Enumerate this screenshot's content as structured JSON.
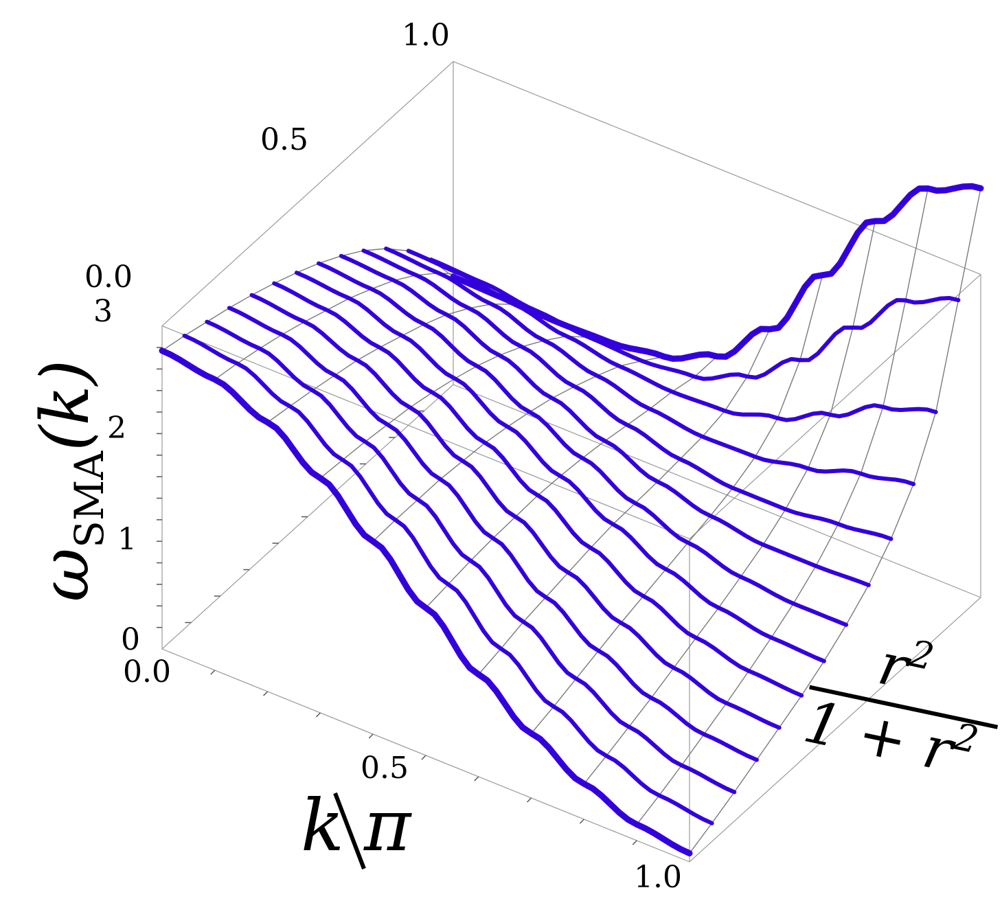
{
  "chart_data": {
    "type": "surface3d",
    "x_axis": {
      "label_num": "k",
      "label_den": "π",
      "ticks": [
        "0.0",
        "0.5",
        "1.0"
      ],
      "range": [
        0,
        1
      ]
    },
    "y_axis": {
      "label_num": "r",
      "label_num_sup": "2",
      "label_den_prefix": "1 + r",
      "label_den_sup": "2",
      "ticks": [
        "0.0",
        "0.5",
        "1.0"
      ],
      "range": [
        0,
        1
      ]
    },
    "z_axis": {
      "label_main": "ω",
      "label_sub": "SMA",
      "label_arg": "(k)",
      "ticks": [
        "0",
        "1",
        "2",
        "3"
      ],
      "range": [
        0,
        3
      ]
    },
    "series_color": "#3300dd",
    "series": [
      {
        "s": 0.0,
        "z": [
          2.77,
          2.7,
          2.5,
          2.18,
          1.79,
          1.37,
          0.95,
          0.6,
          0.33,
          0.15,
          0.08
        ]
      },
      {
        "s": 0.077,
        "z": [
          2.72,
          2.66,
          2.46,
          2.16,
          1.8,
          1.4,
          1.0,
          0.66,
          0.4,
          0.23,
          0.17
        ]
      },
      {
        "s": 0.154,
        "z": [
          2.66,
          2.61,
          2.42,
          2.14,
          1.8,
          1.43,
          1.06,
          0.73,
          0.48,
          0.32,
          0.27
        ]
      },
      {
        "s": 0.231,
        "z": [
          2.6,
          2.55,
          2.37,
          2.11,
          1.8,
          1.45,
          1.1,
          0.8,
          0.56,
          0.42,
          0.38
        ]
      },
      {
        "s": 0.308,
        "z": [
          2.53,
          2.48,
          2.32,
          2.08,
          1.78,
          1.46,
          1.14,
          0.87,
          0.65,
          0.52,
          0.49
        ]
      },
      {
        "s": 0.385,
        "z": [
          2.45,
          2.4,
          2.25,
          2.03,
          1.76,
          1.47,
          1.18,
          0.93,
          0.74,
          0.63,
          0.6
        ]
      },
      {
        "s": 0.462,
        "z": [
          2.36,
          2.32,
          2.17,
          1.97,
          1.72,
          1.46,
          1.21,
          0.99,
          0.83,
          0.75,
          0.73
        ]
      },
      {
        "s": 0.538,
        "z": [
          2.26,
          2.22,
          2.09,
          1.9,
          1.67,
          1.44,
          1.22,
          1.05,
          0.93,
          0.88,
          0.88
        ]
      },
      {
        "s": 0.615,
        "z": [
          2.14,
          2.11,
          1.99,
          1.81,
          1.61,
          1.41,
          1.23,
          1.11,
          1.04,
          1.04,
          1.06
        ]
      },
      {
        "s": 0.692,
        "z": [
          2.0,
          1.97,
          1.86,
          1.7,
          1.53,
          1.37,
          1.25,
          1.18,
          1.18,
          1.24,
          1.3
        ]
      },
      {
        "s": 0.769,
        "z": [
          1.83,
          1.8,
          1.71,
          1.57,
          1.44,
          1.33,
          1.27,
          1.28,
          1.37,
          1.52,
          1.62
        ]
      },
      {
        "s": 0.846,
        "z": [
          1.62,
          1.6,
          1.52,
          1.42,
          1.34,
          1.3,
          1.32,
          1.45,
          1.68,
          1.95,
          2.1
        ]
      },
      {
        "s": 0.923,
        "z": [
          1.35,
          1.33,
          1.27,
          1.22,
          1.2,
          1.25,
          1.45,
          1.8,
          2.3,
          2.75,
          2.95
        ]
      },
      {
        "s": 1.0,
        "z": [
          1.0,
          0.99,
          0.97,
          0.98,
          1.05,
          1.25,
          1.7,
          2.4,
          3.1,
          3.6,
          3.8
        ]
      }
    ]
  }
}
